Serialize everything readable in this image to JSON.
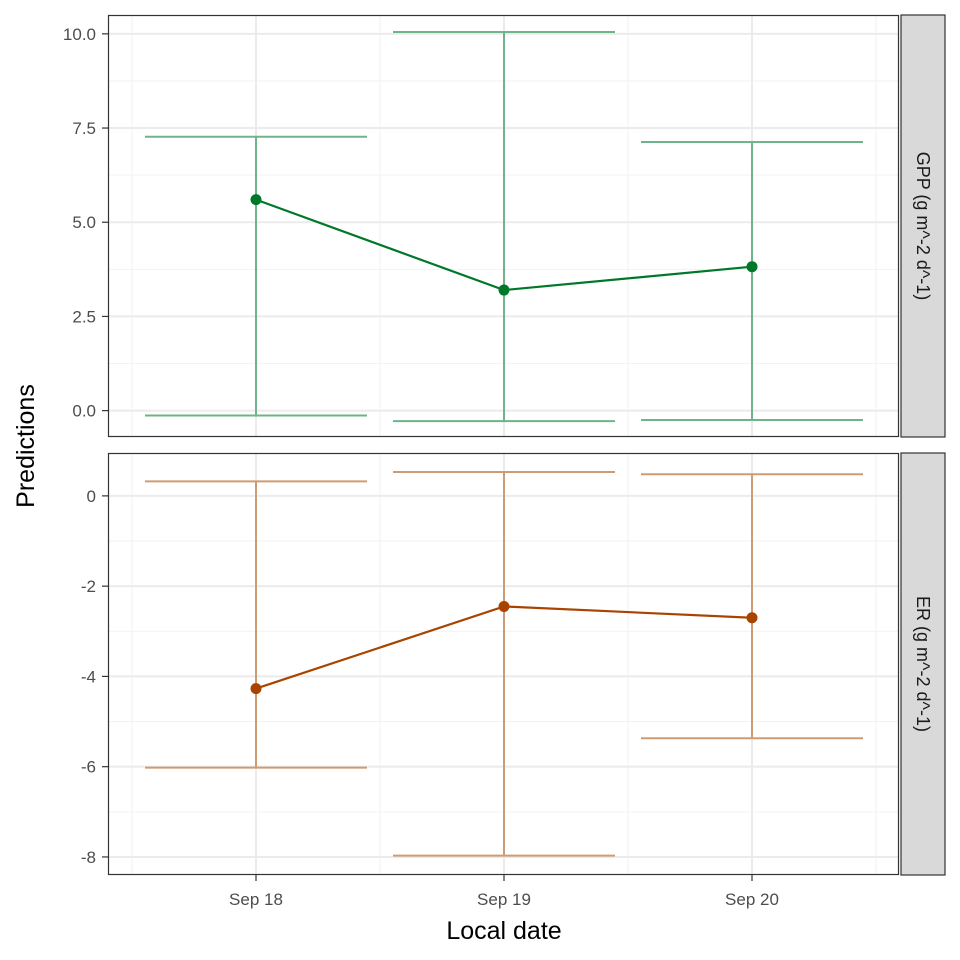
{
  "chart_data": {
    "type": "line",
    "xlabel": "Local date",
    "ylabel": "Predictions",
    "x_ticks": [
      "Sep 18",
      "Sep 19",
      "Sep 20"
    ],
    "grid": true,
    "facets": [
      {
        "label": "GPP (g m^-2 d^-1)",
        "color": "#00782a",
        "errorbar_color": "#6fb38a",
        "ylim": [
          -0.7,
          10.5
        ],
        "y_ticks": [
          0.0,
          2.5,
          5.0,
          7.5,
          10.0
        ],
        "y_tick_labels": [
          "0.0",
          "2.5",
          "5.0",
          "7.5",
          "10.0"
        ],
        "points": [
          {
            "x": "Sep 18",
            "y": 5.6,
            "lower": -0.13,
            "upper": 7.27
          },
          {
            "x": "Sep 19",
            "y": 3.2,
            "lower": -0.28,
            "upper": 10.05
          },
          {
            "x": "Sep 20",
            "y": 3.82,
            "lower": -0.25,
            "upper": 7.13
          }
        ]
      },
      {
        "label": "ER (g m^-2 d^-1)",
        "color": "#a84400",
        "errorbar_color": "#cf9b72",
        "ylim": [
          -8.4,
          0.95
        ],
        "y_ticks": [
          0,
          -2,
          -4,
          -6,
          -8
        ],
        "y_tick_labels": [
          "0",
          "-2",
          "-4",
          "-6",
          "-8"
        ],
        "points": [
          {
            "x": "Sep 18",
            "y": -4.27,
            "lower": -6.02,
            "upper": 0.32
          },
          {
            "x": "Sep 19",
            "y": -2.45,
            "lower": -7.97,
            "upper": 0.53
          },
          {
            "x": "Sep 20",
            "y": -2.7,
            "lower": -5.37,
            "upper": 0.48
          }
        ]
      }
    ]
  }
}
